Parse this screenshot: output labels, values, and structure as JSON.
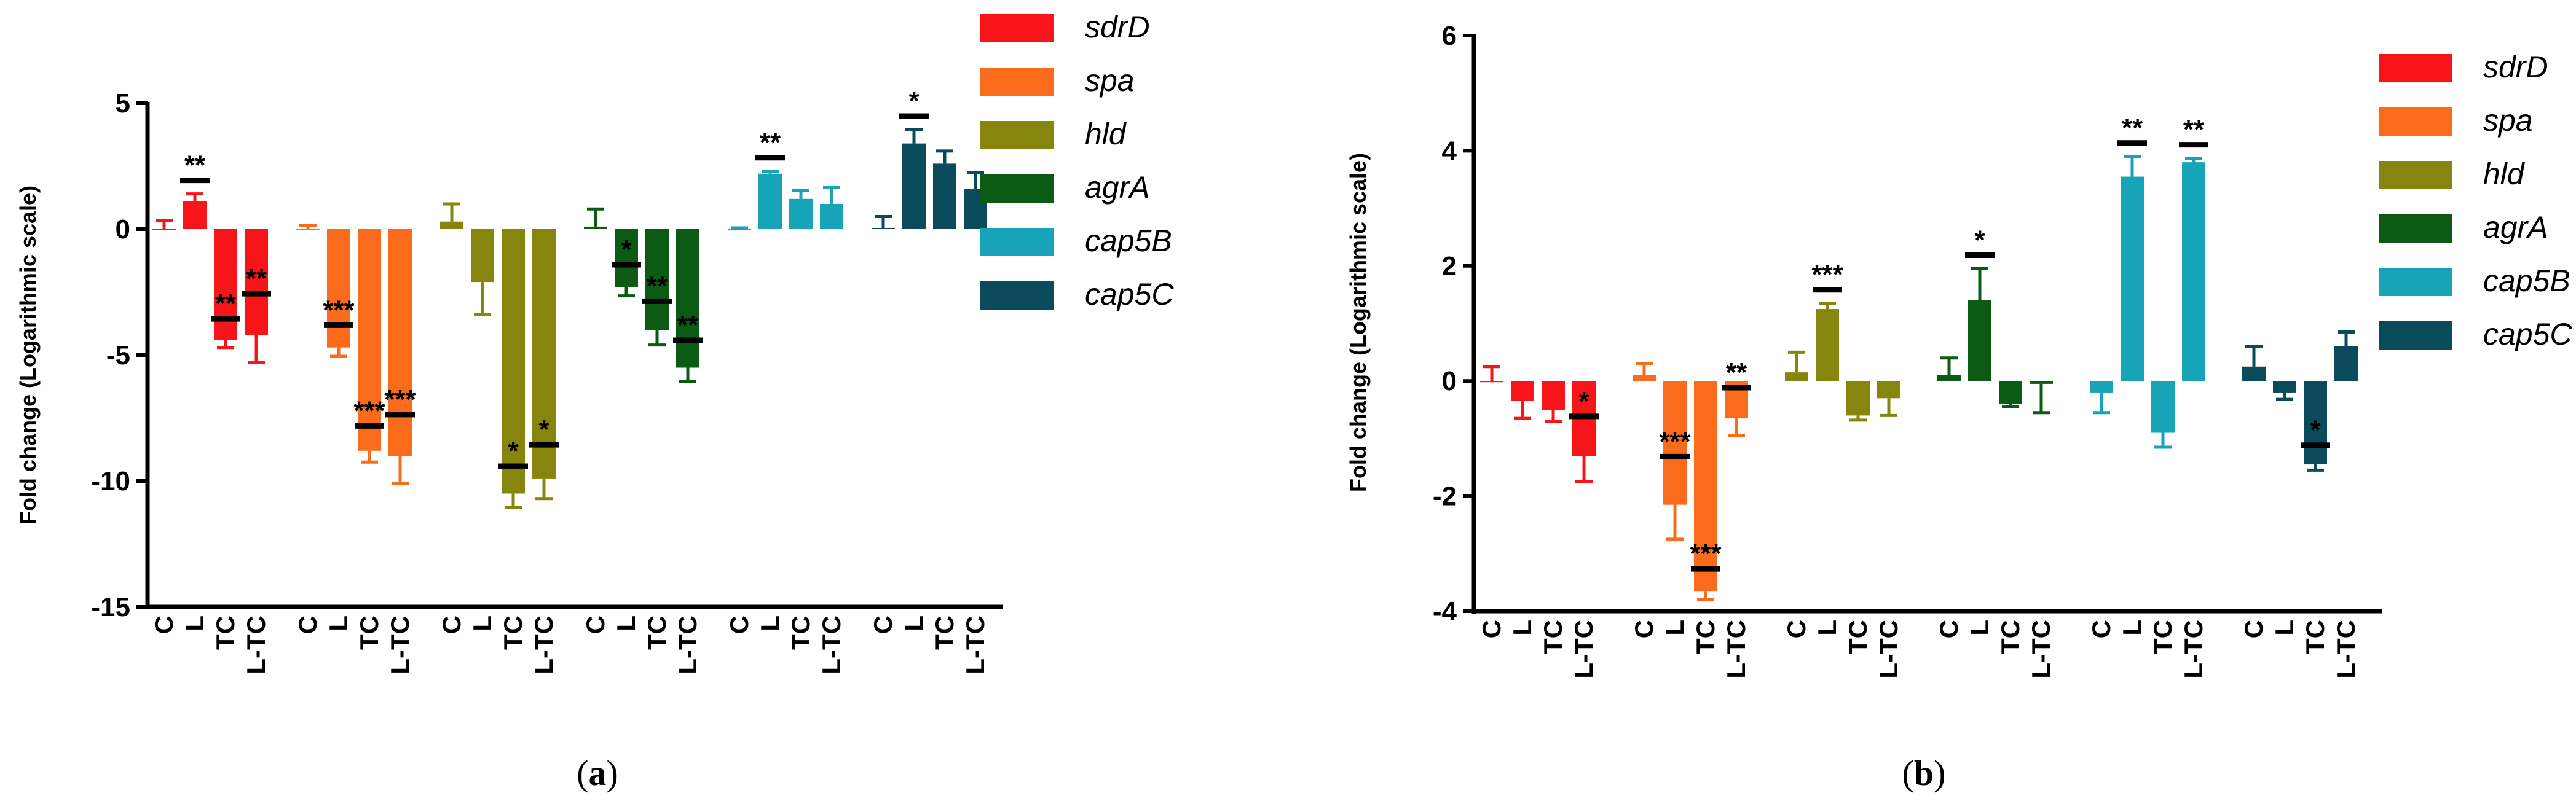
{
  "colors": {
    "sdrD": "#f8151a",
    "spa": "#fa6c1b",
    "hld": "#86860f",
    "agrA": "#0b5b14",
    "cap5B": "#17a3b8",
    "cap5C": "#0b4a5a"
  },
  "chart_data": [
    {
      "type": "bar",
      "panel": "(a)",
      "ylabel": "Fold change (Logarithmic scale)",
      "ylim": [
        -15,
        5
      ],
      "yticks": [
        "5",
        "0",
        "-5",
        "-10",
        "-15"
      ],
      "ytick_values": [
        5,
        0,
        -5,
        -10,
        -15
      ],
      "categories": [
        "C",
        "L",
        "TC",
        "L-TC"
      ],
      "series": [
        {
          "name": "sdrD",
          "values": [
            0,
            1.1,
            -4.4,
            -4.2
          ],
          "errors": [
            0.35,
            0.3,
            0.3,
            1.1
          ],
          "sig": [
            "",
            "**",
            "**",
            "**"
          ]
        },
        {
          "name": "spa",
          "values": [
            0,
            -4.7,
            -8.8,
            -9.0
          ],
          "errors": [
            0.15,
            0.35,
            0.45,
            1.1
          ],
          "sig": [
            "",
            "***",
            "***",
            "***"
          ]
        },
        {
          "name": "hld",
          "values": [
            0.3,
            -2.1,
            -10.5,
            -9.9
          ],
          "errors": [
            0.7,
            1.3,
            0.55,
            0.8
          ],
          "sig": [
            "",
            "",
            "*",
            "*"
          ]
        },
        {
          "name": "agrA",
          "values": [
            0.1,
            -2.3,
            -4.0,
            -5.5
          ],
          "errors": [
            0.7,
            0.35,
            0.6,
            0.55
          ],
          "sig": [
            "",
            "*",
            "**",
            "**"
          ]
        },
        {
          "name": "cap5B",
          "values": [
            0,
            2.2,
            1.2,
            1.0
          ],
          "errors": [
            0.05,
            0.1,
            0.35,
            0.65
          ],
          "sig": [
            "",
            "**",
            "",
            ""
          ]
        },
        {
          "name": "cap5C",
          "values": [
            0.05,
            3.4,
            2.6,
            1.6
          ],
          "errors": [
            0.45,
            0.55,
            0.5,
            0.65
          ],
          "sig": [
            "",
            "*",
            "",
            ""
          ]
        }
      ],
      "caption": "(a)"
    },
    {
      "type": "bar",
      "panel": "(b)",
      "ylabel": "Fold change (Logarithmic scale)",
      "ylim": [
        -4,
        6
      ],
      "yticks": [
        "6",
        "4",
        "2",
        "0",
        "-2",
        "-4"
      ],
      "ytick_values": [
        6,
        4,
        2,
        0,
        -2,
        -4
      ],
      "categories": [
        "C",
        "L",
        "TC",
        "L-TC"
      ],
      "series": [
        {
          "name": "sdrD",
          "values": [
            0,
            -0.35,
            -0.5,
            -1.3
          ],
          "errors": [
            0.25,
            0.3,
            0.2,
            0.45
          ],
          "sig": [
            "",
            "",
            "",
            "*"
          ]
        },
        {
          "name": "spa",
          "values": [
            0.1,
            -2.15,
            -3.65,
            -0.65
          ],
          "errors": [
            0.2,
            0.6,
            0.15,
            0.3
          ],
          "sig": [
            "",
            "***",
            "***",
            "**"
          ]
        },
        {
          "name": "hld",
          "values": [
            0.15,
            1.25,
            -0.6,
            -0.3
          ],
          "errors": [
            0.35,
            0.1,
            0.08,
            0.3
          ],
          "sig": [
            "",
            "***",
            "",
            ""
          ]
        },
        {
          "name": "agrA",
          "values": [
            0.1,
            1.4,
            -0.4,
            -0.05
          ],
          "errors": [
            0.3,
            0.55,
            0.05,
            0.5
          ],
          "sig": [
            "",
            "*",
            "",
            ""
          ]
        },
        {
          "name": "cap5B",
          "values": [
            -0.2,
            3.55,
            -0.9,
            3.8
          ],
          "errors": [
            0.35,
            0.35,
            0.25,
            0.07
          ],
          "sig": [
            "",
            "**",
            "",
            "**"
          ]
        },
        {
          "name": "cap5C",
          "values": [
            0.25,
            -0.2,
            -1.45,
            0.6
          ],
          "errors": [
            0.35,
            0.12,
            0.1,
            0.25
          ],
          "sig": [
            "",
            "",
            "*",
            ""
          ]
        }
      ],
      "caption": "(b)"
    }
  ]
}
